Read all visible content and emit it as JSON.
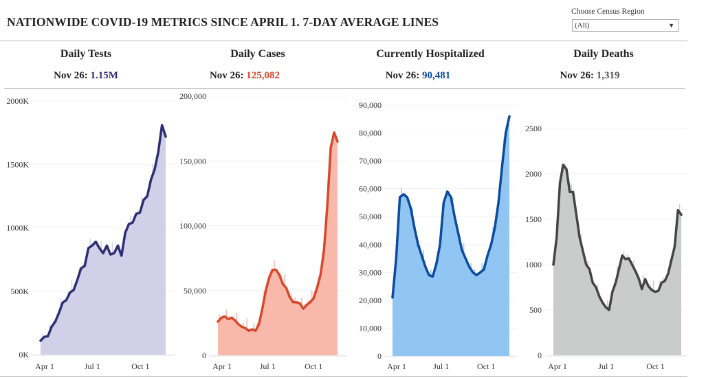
{
  "header": {
    "title": "NATIONWIDE COVID-19 METRICS SINCE APRIL 1. 7-DAY AVERAGE LINES"
  },
  "region_filter": {
    "label": "Choose Census Region",
    "value": "(All)"
  },
  "panels": [
    {
      "title": "Daily Tests",
      "date": "Nov 26:",
      "value": "1.15M",
      "value_color": "#2e2e73"
    },
    {
      "title": "Daily Cases",
      "date": "Nov 26:",
      "value": "125,082",
      "value_color": "#d9472b"
    },
    {
      "title": "Currently Hospitalized",
      "date": "Nov 26:",
      "value": "90,481",
      "value_color": "#0b4a9e"
    },
    {
      "title": "Daily Deaths",
      "date": "Nov 26:",
      "value": "1,319",
      "value_color": "#555555"
    }
  ],
  "chart_data": [
    {
      "type": "area",
      "title": "Daily Tests",
      "x_range": [
        "Apr 1",
        "Nov 26"
      ],
      "xticks": [
        "Apr 1",
        "Jul 1",
        "Oct 1"
      ],
      "ylim": [
        0,
        2000000
      ],
      "yticks": [
        {
          "v": 0,
          "label": "0K"
        },
        {
          "v": 500000,
          "label": "500K"
        },
        {
          "v": 1000000,
          "label": "1000K"
        },
        {
          "v": 1500000,
          "label": "1500K"
        },
        {
          "v": 2000000,
          "label": "2000K"
        }
      ],
      "line_color": "#2e2e73",
      "fill_color": "#d0d0e8",
      "avg_values": [
        110000,
        140000,
        145000,
        220000,
        260000,
        330000,
        410000,
        430000,
        490000,
        510000,
        590000,
        680000,
        700000,
        840000,
        860000,
        890000,
        840000,
        800000,
        860000,
        790000,
        800000,
        860000,
        780000,
        960000,
        1030000,
        1040000,
        1110000,
        1120000,
        1220000,
        1250000,
        1380000,
        1460000,
        1600000,
        1810000,
        1720000
      ]
    },
    {
      "type": "area",
      "title": "Daily Cases",
      "x_range": [
        "Apr 1",
        "Nov 26"
      ],
      "xticks": [
        "Apr 1",
        "Jul 1",
        "Oct 1"
      ],
      "ylim": [
        0,
        200000
      ],
      "yticks": [
        {
          "v": 0,
          "label": "0"
        },
        {
          "v": 50000,
          "label": "50,000"
        },
        {
          "v": 100000,
          "label": "100,000"
        },
        {
          "v": 150000,
          "label": "150,000"
        },
        {
          "v": 200000,
          "label": "200,000"
        }
      ],
      "line_color": "#d9472b",
      "fill_color": "#f8b9ab",
      "avg_values": [
        26000,
        29000,
        30000,
        28000,
        29000,
        27000,
        24000,
        22000,
        21000,
        19000,
        20000,
        19000,
        24000,
        36000,
        50000,
        60000,
        66000,
        66000,
        62000,
        55000,
        52000,
        45000,
        41000,
        41000,
        40000,
        36000,
        39000,
        41000,
        44000,
        52000,
        62000,
        80000,
        115000,
        160000,
        172000,
        165000
      ]
    },
    {
      "type": "area",
      "title": "Currently Hospitalized",
      "x_range": [
        "Apr 1",
        "Nov 26"
      ],
      "xticks": [
        "Apr 1",
        "Jul 1",
        "Oct 1"
      ],
      "ylim": [
        0,
        90000
      ],
      "yticks": [
        {
          "v": 0,
          "label": "0"
        },
        {
          "v": 10000,
          "label": "10,000"
        },
        {
          "v": 20000,
          "label": "20,000"
        },
        {
          "v": 30000,
          "label": "30,000"
        },
        {
          "v": 40000,
          "label": "40,000"
        },
        {
          "v": 50000,
          "label": "50,000"
        },
        {
          "v": 60000,
          "label": "60,000"
        },
        {
          "v": 70000,
          "label": "70,000"
        },
        {
          "v": 80000,
          "label": "80,000"
        },
        {
          "v": 90000,
          "label": "90,000"
        }
      ],
      "line_color": "#0b4a9e",
      "fill_color": "#91c5f2",
      "avg_values": [
        21000,
        35000,
        57000,
        58000,
        57000,
        53000,
        46000,
        40000,
        36000,
        32000,
        29000,
        28500,
        33000,
        40000,
        55000,
        59000,
        57000,
        50000,
        44000,
        38000,
        35000,
        32000,
        30000,
        29000,
        30000,
        31000,
        36000,
        40000,
        46000,
        55000,
        68000,
        80000,
        86000
      ]
    },
    {
      "type": "area",
      "title": "Daily Deaths",
      "x_range": [
        "Apr 1",
        "Nov 26"
      ],
      "xticks": [
        "Apr 1",
        "Jul 1",
        "Oct 1"
      ],
      "ylim": [
        0,
        2750
      ],
      "yticks": [
        {
          "v": 0,
          "label": "0"
        },
        {
          "v": 500,
          "label": "500"
        },
        {
          "v": 1000,
          "label": "1000"
        },
        {
          "v": 1500,
          "label": "1500"
        },
        {
          "v": 2000,
          "label": "2000"
        },
        {
          "v": 2500,
          "label": "2500"
        }
      ],
      "line_color": "#444444",
      "fill_color": "#c9cccb",
      "avg_values": [
        1000,
        1300,
        1900,
        2100,
        2050,
        1800,
        1800,
        1550,
        1300,
        1150,
        1000,
        950,
        800,
        750,
        650,
        580,
        530,
        500,
        700,
        800,
        950,
        1100,
        1060,
        1070,
        1000,
        930,
        850,
        730,
        840,
        760,
        720,
        700,
        710,
        800,
        820,
        900,
        1050,
        1200,
        1600,
        1550
      ]
    }
  ]
}
